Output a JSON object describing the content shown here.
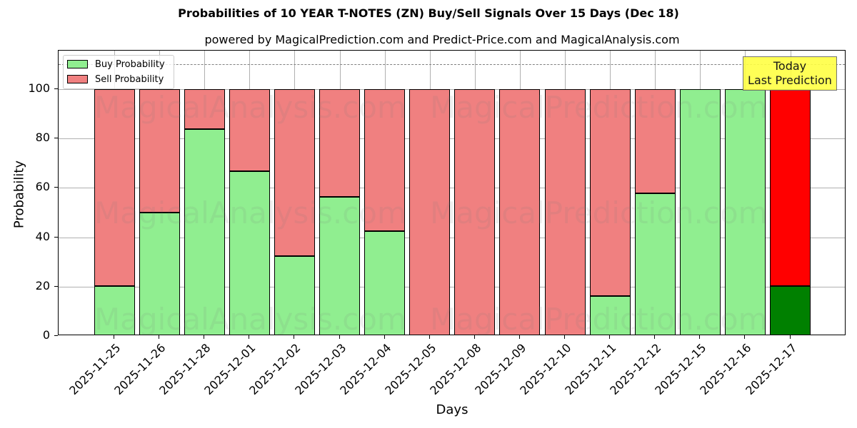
{
  "chart_data": {
    "type": "bar",
    "stacked": true,
    "title": "Probabilities of 10 YEAR T-NOTES (ZN) Buy/Sell Signals Over 15 Days (Dec 18)",
    "subtitle": "powered by MagicalPrediction.com and Predict-Price.com and MagicalAnalysis.com",
    "xlabel": "Days",
    "ylabel": "Probability",
    "ylim": [
      0,
      115
    ],
    "yticks": [
      0,
      20,
      40,
      60,
      80,
      100
    ],
    "grid": true,
    "legend_position": "upper left",
    "reference_line": {
      "y": 110,
      "style": "dashed",
      "color": "#808080"
    },
    "categories": [
      "2025-11-25",
      "2025-11-26",
      "2025-11-28",
      "2025-12-01",
      "2025-12-02",
      "2025-12-03",
      "2025-12-04",
      "2025-12-05",
      "2025-12-08",
      "2025-12-09",
      "2025-12-10",
      "2025-12-11",
      "2025-12-12",
      "2025-12-15",
      "2025-12-16",
      "2025-12-17"
    ],
    "series": [
      {
        "name": "Buy Probability",
        "color": "#90ee90",
        "values": [
          20.3,
          50.0,
          83.8,
          66.8,
          32.4,
          56.4,
          42.5,
          0,
          0,
          0,
          0,
          16.2,
          57.8,
          100,
          100,
          20.2
        ]
      },
      {
        "name": "Sell Probability",
        "color": "#f08080",
        "values": [
          79.7,
          50.0,
          16.2,
          33.2,
          67.6,
          43.6,
          57.5,
          100,
          100,
          100,
          100,
          83.8,
          42.2,
          0,
          0,
          79.8
        ]
      }
    ],
    "highlight": {
      "index": 15,
      "buy_color": "#008000",
      "sell_color": "#ff0000"
    },
    "annotation": {
      "text_line1": "Today",
      "text_line2": "Last Prediction",
      "background": "#ffff44"
    },
    "watermarks": [
      "MagicalAnalysis.com",
      "MagicalPrediction.com"
    ]
  }
}
